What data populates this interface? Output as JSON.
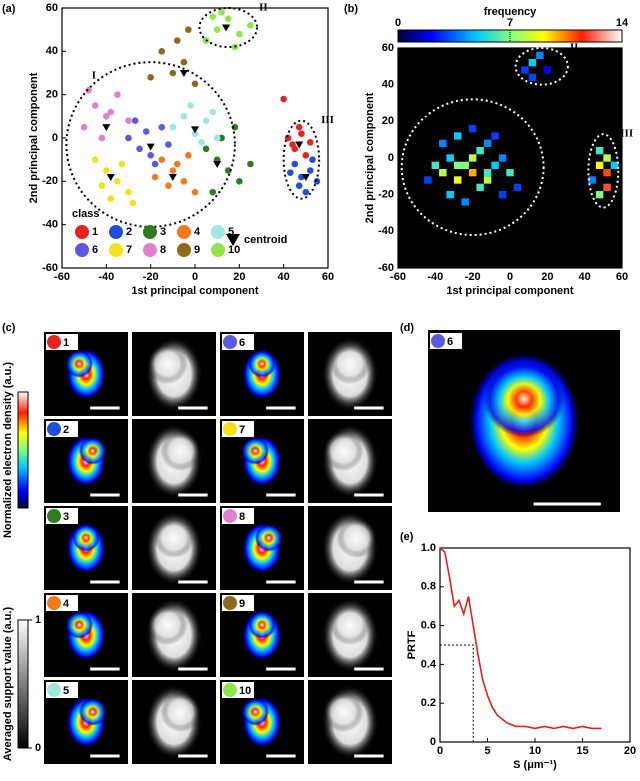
{
  "chart_data": [
    {
      "type": "scatter",
      "label": "(a)",
      "xlabel": "1st principal component",
      "ylabel": "2nd principal component",
      "xlim": [
        -60,
        60
      ],
      "ylim": [
        -60,
        60
      ],
      "xticks": [
        -60,
        -40,
        -20,
        0,
        20,
        40,
        60
      ],
      "yticks": [
        -60,
        -40,
        -20,
        0,
        20,
        40,
        60
      ],
      "legend_title": "class",
      "series": [
        {
          "name": "1",
          "color": "#e8231f",
          "x": [
            42,
            45,
            48,
            50,
            44,
            47,
            52,
            40
          ],
          "values": [
            0,
            -5,
            2,
            -8,
            -3,
            5,
            -2,
            18
          ]
        },
        {
          "name": "2",
          "color": "#1f4fd8",
          "x": [
            45,
            48,
            52,
            55,
            50,
            47,
            53,
            43
          ],
          "values": [
            -12,
            -18,
            -15,
            -20,
            -25,
            -22,
            -10,
            -16
          ]
        },
        {
          "name": "3",
          "color": "#2e7d1f",
          "x": [
            5,
            10,
            15,
            20,
            8,
            12,
            25,
            18
          ],
          "values": [
            -5,
            -10,
            -15,
            -20,
            -25,
            0,
            -12,
            5
          ]
        },
        {
          "name": "4",
          "color": "#f07a1e",
          "x": [
            -15,
            -10,
            -5,
            0,
            -8,
            -12,
            -3,
            -18
          ],
          "values": [
            -10,
            -15,
            -20,
            -25,
            -12,
            -22,
            -8,
            -18
          ]
        },
        {
          "name": "5",
          "color": "#9fe8e0",
          "x": [
            -10,
            -5,
            0,
            5,
            10,
            -2,
            8,
            3
          ],
          "values": [
            5,
            10,
            2,
            8,
            0,
            15,
            12,
            -2
          ]
        },
        {
          "name": "6",
          "color": "#5a5ae0",
          "x": [
            -30,
            -25,
            -20,
            -15,
            -22,
            -18,
            -27,
            -12
          ],
          "values": [
            0,
            -5,
            -8,
            5,
            3,
            -12,
            8,
            -3
          ]
        },
        {
          "name": "7",
          "color": "#f5e11a",
          "x": [
            -45,
            -40,
            -35,
            -30,
            -38,
            -42,
            -33,
            -28
          ],
          "values": [
            -10,
            -15,
            -20,
            -25,
            -28,
            -22,
            -12,
            -30
          ]
        },
        {
          "name": "8",
          "color": "#e080d0",
          "x": [
            -50,
            -45,
            -40,
            -35,
            -42,
            -48,
            -38,
            -30
          ],
          "values": [
            5,
            15,
            10,
            20,
            0,
            22,
            12,
            8
          ]
        },
        {
          "name": "9",
          "color": "#8b6a1e",
          "x": [
            -15,
            -10,
            -5,
            0,
            -8,
            -3,
            5,
            -20
          ],
          "values": [
            40,
            30,
            35,
            25,
            45,
            50,
            45,
            28
          ]
        },
        {
          "name": "10",
          "color": "#8ee64a",
          "x": [
            5,
            10,
            15,
            20,
            25,
            12,
            18,
            8
          ],
          "values": [
            45,
            50,
            55,
            48,
            52,
            58,
            42,
            56
          ]
        }
      ],
      "centroid": {
        "name": "centroid",
        "color": "#000000",
        "x": [
          47,
          50,
          10,
          -10,
          0,
          -20,
          -38,
          -40,
          -5,
          14
        ],
        "values": [
          -3,
          -18,
          -12,
          -18,
          4,
          -4,
          -18,
          5,
          30,
          51
        ]
      },
      "regions": [
        {
          "label": "I",
          "cx": -20,
          "cy": -3,
          "rx": 38,
          "ry": 38
        },
        {
          "label": "II",
          "cx": 15,
          "cy": 51,
          "rx": 13,
          "ry": 9
        },
        {
          "label": "III",
          "cx": 48,
          "cy": -10,
          "rx": 8,
          "ry": 18
        }
      ]
    },
    {
      "type": "heatmap",
      "label": "(b)",
      "xlabel": "1st principal component",
      "ylabel": "2nd principal component",
      "xlim": [
        -60,
        60
      ],
      "ylim": [
        -60,
        60
      ],
      "xticks": [
        -60,
        -40,
        -20,
        0,
        20,
        40,
        60
      ],
      "yticks": [
        -60,
        -40,
        -20,
        0,
        20,
        40,
        60
      ],
      "colorbar_title": "frequency",
      "clim": [
        0,
        14
      ],
      "cticks": [
        0,
        7,
        14
      ],
      "bin": 4,
      "x": [
        -40,
        -36,
        -32,
        -28,
        -24,
        -20,
        -16,
        -12,
        -8,
        -4,
        0,
        4,
        -36,
        -28,
        -20,
        -12,
        -4,
        -32,
        -24,
        -16,
        -8,
        -44,
        -20,
        -28,
        -12,
        8,
        12,
        16,
        20,
        12,
        48,
        48,
        52,
        52,
        48,
        52,
        44,
        56
      ],
      "y": [
        -4,
        -8,
        0,
        -12,
        -4,
        -8,
        4,
        -12,
        -4,
        0,
        -8,
        -16,
        8,
        12,
        16,
        8,
        -20,
        -20,
        -24,
        -16,
        12,
        -12,
        0,
        -4,
        -8,
        48,
        52,
        56,
        48,
        44,
        4,
        -4,
        -8,
        -16,
        -20,
        0,
        -12,
        -4
      ],
      "values": [
        6,
        8,
        5,
        9,
        7,
        10,
        6,
        8,
        5,
        4,
        6,
        3,
        4,
        5,
        3,
        4,
        3,
        5,
        4,
        6,
        3,
        3,
        8,
        7,
        6,
        3,
        5,
        4,
        2,
        3,
        6,
        9,
        11,
        12,
        7,
        8,
        4,
        5
      ],
      "regions": [
        {
          "label": "I",
          "cx": -20,
          "cy": -5,
          "rx": 38,
          "ry": 37
        },
        {
          "label": "II",
          "cx": 17,
          "cy": 50,
          "rx": 14,
          "ry": 10
        },
        {
          "label": "III",
          "cx": 50,
          "cy": -7,
          "rx": 8,
          "ry": 20
        }
      ]
    },
    {
      "type": "images",
      "label": "(c)",
      "density_label": "Normalized electron density (a.u.)",
      "support_label": "Averaged support value (a.u.)",
      "support_ticks": [
        0,
        1
      ],
      "panels": [
        {
          "name": "1",
          "color": "#e8231f"
        },
        {
          "name": "6",
          "color": "#5a5ae0"
        },
        {
          "name": "2",
          "color": "#1f4fd8"
        },
        {
          "name": "7",
          "color": "#f5e11a"
        },
        {
          "name": "3",
          "color": "#2e7d1f"
        },
        {
          "name": "8",
          "color": "#e080d0"
        },
        {
          "name": "4",
          "color": "#f07a1e"
        },
        {
          "name": "9",
          "color": "#8b6a1e"
        },
        {
          "name": "5",
          "color": "#9fe8e0"
        },
        {
          "name": "10",
          "color": "#8ee64a"
        }
      ]
    },
    {
      "type": "image",
      "label": "(d)",
      "panel": {
        "name": "6",
        "color": "#5a5ae0"
      }
    },
    {
      "type": "line",
      "label": "(e)",
      "xlabel": "S (μm⁻¹)",
      "ylabel": "PRTF",
      "color": "#e0201a",
      "xlim": [
        0,
        20
      ],
      "ylim": [
        0,
        1
      ],
      "xticks": [
        0,
        5,
        10,
        15,
        20
      ],
      "yticks": [
        0,
        0.2,
        0.4,
        0.6,
        0.8,
        {
          "value": 1,
          "label": "1.0"
        }
      ],
      "x": [
        0,
        0.5,
        1,
        1.5,
        2,
        2.5,
        3,
        3.5,
        4,
        4.5,
        5,
        5.5,
        6,
        7,
        8,
        9,
        10,
        11,
        12,
        13,
        14,
        15,
        16,
        17
      ],
      "values": [
        1,
        0.98,
        0.85,
        0.7,
        0.73,
        0.66,
        0.75,
        0.6,
        0.45,
        0.32,
        0.24,
        0.18,
        0.14,
        0.1,
        0.08,
        0.08,
        0.07,
        0.08,
        0.07,
        0.08,
        0.07,
        0.08,
        0.07,
        0.07
      ],
      "guide": {
        "x": 3.5,
        "y": 0.5
      }
    }
  ]
}
